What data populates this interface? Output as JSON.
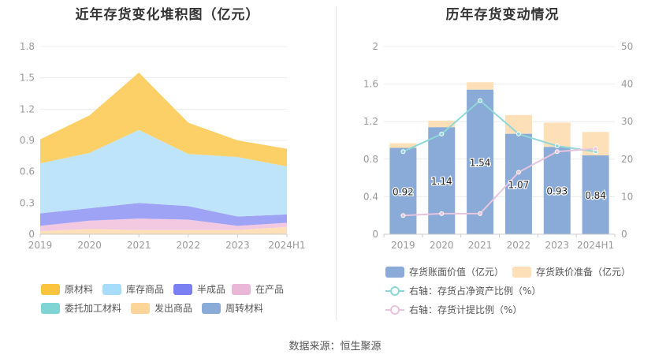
{
  "left_title": "近年存货变化堆积图（亿元）",
  "right_title": "历年存货变动情况",
  "source": "数据来源：恒生聚源",
  "chart_data": [
    {
      "type": "area",
      "title": "近年存货变化堆积图（亿元）",
      "categories": [
        "2019",
        "2020",
        "2021",
        "2022",
        "2023",
        "2024H1"
      ],
      "ylim": [
        0,
        1.8
      ],
      "yticks": [
        "0",
        "0.3",
        "0.6",
        "0.9",
        "1.2",
        "1.5",
        "1.8"
      ],
      "stack_order": [
        "周转材料",
        "发出商品",
        "委托加工材料",
        "在产品",
        "半成品",
        "库存商品",
        "原材料"
      ],
      "series": [
        {
          "name": "原材料",
          "color": "#fdd067",
          "values": [
            0.23,
            0.36,
            0.55,
            0.3,
            0.16,
            0.17
          ]
        },
        {
          "name": "库存商品",
          "color": "#bde4fa",
          "values": [
            0.48,
            0.53,
            0.7,
            0.5,
            0.57,
            0.46
          ]
        },
        {
          "name": "半成品",
          "color": "#9fa3f5",
          "values": [
            0.12,
            0.12,
            0.15,
            0.13,
            0.09,
            0.08
          ]
        },
        {
          "name": "在产品",
          "color": "#f2c9e1",
          "values": [
            0.05,
            0.08,
            0.11,
            0.1,
            0.04,
            0.04
          ]
        },
        {
          "name": "委托加工材料",
          "color": "#8ed8d8",
          "values": [
            0.0,
            0.0,
            0.0,
            0.0,
            0.0,
            0.0
          ]
        },
        {
          "name": "发出商品",
          "color": "#fde0b8",
          "values": [
            0.03,
            0.05,
            0.04,
            0.04,
            0.04,
            0.07
          ]
        },
        {
          "name": "周转材料",
          "color": "#8aaad8",
          "values": [
            0.0,
            0.0,
            0.0,
            0.0,
            0.0,
            0.0
          ]
        }
      ],
      "legend": [
        {
          "name": "原材料",
          "color": "#fbc43f"
        },
        {
          "name": "库存商品",
          "color": "#a8dcfb"
        },
        {
          "name": "半成品",
          "color": "#7a7ff2"
        },
        {
          "name": "在产品",
          "color": "#ebb7d8"
        },
        {
          "name": "委托加工材料",
          "color": "#7fd4d4"
        },
        {
          "name": "发出商品",
          "color": "#fdd59a"
        },
        {
          "name": "周转材料",
          "color": "#8aaad8"
        }
      ]
    },
    {
      "type": "bar",
      "title": "历年存货变动情况",
      "categories": [
        "2019",
        "2020",
        "2021",
        "2022",
        "2023",
        "2024H1"
      ],
      "ylim_left": [
        0,
        2
      ],
      "yticks_left": [
        "0",
        "0.4",
        "0.8",
        "1.2",
        "1.6",
        "2"
      ],
      "ylim_right": [
        0,
        50
      ],
      "yticks_right": [
        "0",
        "10",
        "20",
        "30",
        "40",
        "50"
      ],
      "bars": {
        "book_value": {
          "name": "存货账面价值（亿元）",
          "color": "#8aaad8",
          "values": [
            0.92,
            1.14,
            1.54,
            1.07,
            0.93,
            0.84
          ],
          "labels": [
            "0.92",
            "1.14",
            "1.54",
            "1.07",
            "0.93",
            "0.84"
          ]
        },
        "impairment": {
          "name": "存货跌价准备（亿元）",
          "color": "#fde0b8",
          "values": [
            0.05,
            0.07,
            0.08,
            0.2,
            0.26,
            0.25
          ]
        }
      },
      "lines": [
        {
          "name": "右轴：存货占净资产比例（%）",
          "color": "#8ed8d8",
          "values": [
            22.0,
            26.7,
            35.6,
            26.7,
            23.5,
            22.0
          ]
        },
        {
          "name": "右轴：存货计提比例（%）",
          "color": "#e8c4dd",
          "values": [
            5.0,
            5.5,
            5.5,
            16.5,
            22.0,
            22.8
          ]
        }
      ]
    }
  ]
}
